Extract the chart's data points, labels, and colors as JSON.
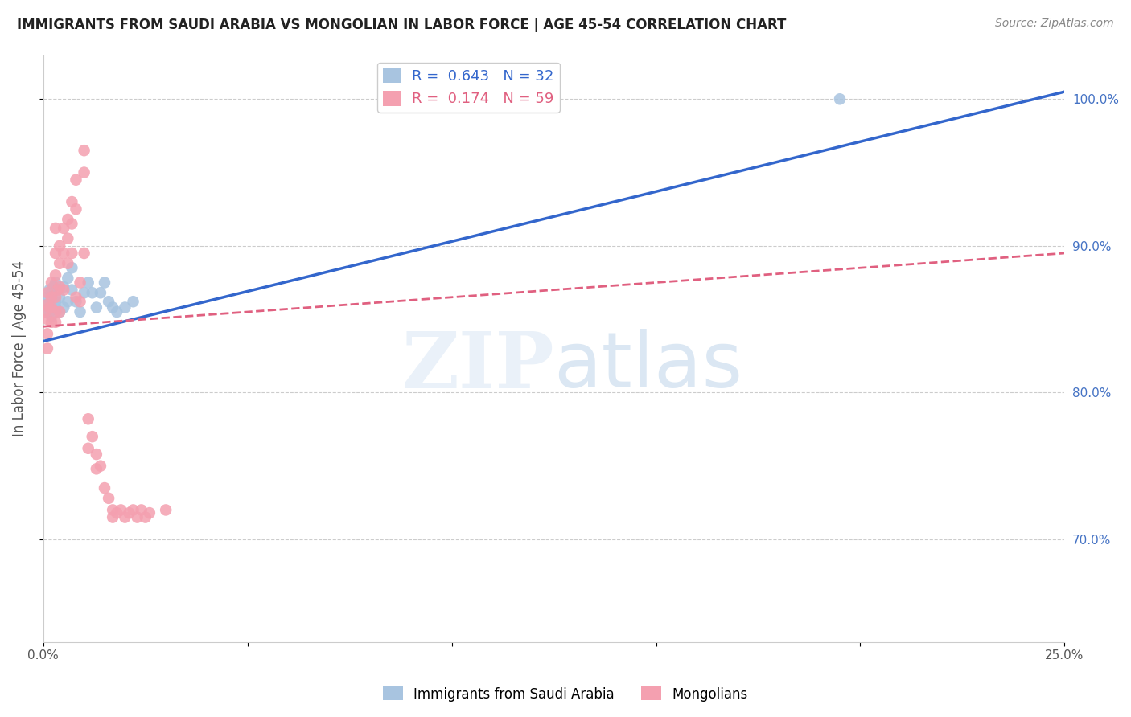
{
  "title": "IMMIGRANTS FROM SAUDI ARABIA VS MONGOLIAN IN LABOR FORCE | AGE 45-54 CORRELATION CHART",
  "source_text": "Source: ZipAtlas.com",
  "ylabel": "In Labor Force | Age 45-54",
  "x_min": 0.0,
  "x_max": 0.25,
  "y_min": 0.63,
  "y_max": 1.03,
  "right_yticks": [
    0.7,
    0.8,
    0.9,
    1.0
  ],
  "right_yticklabels": [
    "70.0%",
    "80.0%",
    "90.0%",
    "100.0%"
  ],
  "R_blue": 0.643,
  "N_blue": 32,
  "R_pink": 0.174,
  "N_pink": 59,
  "blue_color": "#a8c4e0",
  "blue_line_color": "#3366cc",
  "pink_color": "#f4a0b0",
  "pink_line_color": "#e06080",
  "grid_color": "#cccccc",
  "blue_line_x0": 0.0,
  "blue_line_y0": 0.835,
  "blue_line_x1": 0.25,
  "blue_line_y1": 1.005,
  "pink_line_x0": 0.0,
  "pink_line_y0": 0.845,
  "pink_line_x1": 0.25,
  "pink_line_y1": 0.895,
  "saudi_x": [
    0.0005,
    0.001,
    0.0015,
    0.0015,
    0.002,
    0.002,
    0.0025,
    0.003,
    0.003,
    0.003,
    0.004,
    0.004,
    0.005,
    0.005,
    0.006,
    0.006,
    0.007,
    0.007,
    0.008,
    0.009,
    0.01,
    0.011,
    0.012,
    0.013,
    0.014,
    0.015,
    0.016,
    0.017,
    0.018,
    0.02,
    0.022,
    0.195
  ],
  "saudi_y": [
    0.86,
    0.865,
    0.855,
    0.87,
    0.852,
    0.868,
    0.872,
    0.858,
    0.862,
    0.875,
    0.865,
    0.855,
    0.858,
    0.872,
    0.862,
    0.878,
    0.87,
    0.885,
    0.862,
    0.855,
    0.868,
    0.875,
    0.868,
    0.858,
    0.868,
    0.875,
    0.862,
    0.858,
    0.855,
    0.858,
    0.862,
    1.0
  ],
  "mongol_x": [
    0.0005,
    0.001,
    0.001,
    0.001,
    0.001,
    0.001,
    0.0015,
    0.002,
    0.002,
    0.002,
    0.002,
    0.003,
    0.003,
    0.003,
    0.003,
    0.003,
    0.003,
    0.0035,
    0.004,
    0.004,
    0.004,
    0.004,
    0.005,
    0.005,
    0.005,
    0.006,
    0.006,
    0.006,
    0.007,
    0.007,
    0.007,
    0.008,
    0.008,
    0.008,
    0.009,
    0.009,
    0.01,
    0.01,
    0.01,
    0.011,
    0.011,
    0.012,
    0.013,
    0.013,
    0.014,
    0.015,
    0.016,
    0.017,
    0.017,
    0.018,
    0.019,
    0.02,
    0.021,
    0.022,
    0.023,
    0.024,
    0.025,
    0.026,
    0.03
  ],
  "mongol_y": [
    0.855,
    0.868,
    0.86,
    0.85,
    0.84,
    0.83,
    0.858,
    0.875,
    0.865,
    0.858,
    0.848,
    0.912,
    0.895,
    0.88,
    0.865,
    0.855,
    0.848,
    0.87,
    0.9,
    0.888,
    0.872,
    0.855,
    0.912,
    0.895,
    0.87,
    0.918,
    0.905,
    0.888,
    0.93,
    0.915,
    0.895,
    0.945,
    0.925,
    0.865,
    0.875,
    0.862,
    0.965,
    0.95,
    0.895,
    0.782,
    0.762,
    0.77,
    0.758,
    0.748,
    0.75,
    0.735,
    0.728,
    0.72,
    0.715,
    0.718,
    0.72,
    0.715,
    0.718,
    0.72,
    0.715,
    0.72,
    0.715,
    0.718,
    0.72
  ]
}
